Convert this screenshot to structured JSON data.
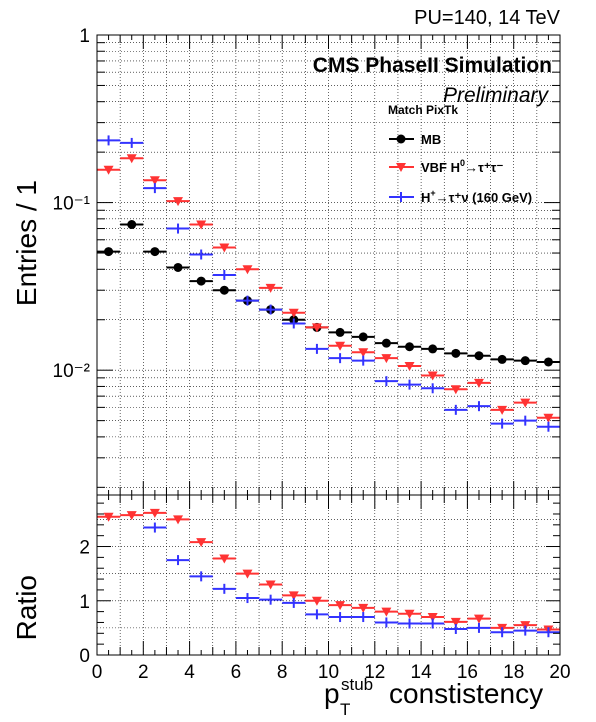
{
  "header": {
    "energy_label": "PU=140, 14 TeV",
    "experiment_label": "CMS PhaseII Simulation",
    "status_label": "Preliminary"
  },
  "legend": {
    "title": "Match PixTk",
    "entries": [
      {
        "key": "mb",
        "label": "MB",
        "sup": "",
        "tail": ""
      },
      {
        "key": "vbf",
        "label": "VBF H",
        "sup": "0",
        "tail": "→τ⁺τ⁻"
      },
      {
        "key": "hplus",
        "label": "H",
        "sup": "+",
        "tail": "→τ⁺ν  (160 GeV)"
      }
    ]
  },
  "chart_data": [
    {
      "type": "scatter",
      "panel": "main",
      "title": "",
      "xlabel": "",
      "ylabel": "Entries / 1",
      "yscale": "log",
      "ylim": [
        0.0018,
        1.0
      ],
      "xlim": [
        0,
        20
      ],
      "y_tick_labels": [
        "1",
        "10⁻¹",
        "10⁻²"
      ],
      "x": [
        0.5,
        1.5,
        2.5,
        3.5,
        4.5,
        5.5,
        6.5,
        7.5,
        8.5,
        9.5,
        10.5,
        11.5,
        12.5,
        13.5,
        14.5,
        15.5,
        16.5,
        17.5,
        18.5,
        19.5
      ],
      "series": [
        {
          "name": "MB",
          "color": "#000000",
          "marker": "circle",
          "values": [
            0.051,
            0.074,
            0.051,
            0.041,
            0.034,
            0.03,
            0.026,
            0.023,
            0.02,
            0.018,
            0.0168,
            0.0158,
            0.0145,
            0.0138,
            0.0134,
            0.0126,
            0.0122,
            0.0116,
            0.0114,
            0.0112
          ]
        },
        {
          "name": "VBF H0→τ+τ-",
          "color": "#ff3333",
          "marker": "triangle-down",
          "values": [
            0.157,
            0.184,
            0.136,
            0.102,
            0.074,
            0.054,
            0.04,
            0.031,
            0.022,
            0.018,
            0.014,
            0.0128,
            0.0118,
            0.0106,
            0.0093,
            0.0077,
            0.0084,
            0.0058,
            0.0064,
            0.0052
          ]
        },
        {
          "name": "H+→τ+ν (160 GeV)",
          "color": "#3333ff",
          "marker": "plus",
          "values": [
            0.235,
            0.227,
            0.122,
            0.07,
            0.049,
            0.037,
            0.026,
            0.023,
            0.019,
            0.0134,
            0.0118,
            0.0114,
            0.0086,
            0.0082,
            0.0078,
            0.0058,
            0.0061,
            0.0048,
            0.005,
            0.0046
          ]
        }
      ]
    },
    {
      "type": "scatter",
      "panel": "ratio",
      "title": "",
      "xlabel": "p_T^stub constistency",
      "ylabel": "Ratio",
      "ylim": [
        0,
        2.95
      ],
      "xlim": [
        0,
        20
      ],
      "y_tick_labels": [
        "0",
        "1",
        "2"
      ],
      "x_tick_labels": [
        "0",
        "2",
        "4",
        "6",
        "8",
        "10",
        "12",
        "14",
        "16",
        "18",
        "20"
      ],
      "x": [
        0.5,
        1.5,
        2.5,
        3.5,
        4.5,
        5.5,
        6.5,
        7.5,
        8.5,
        9.5,
        10.5,
        11.5,
        12.5,
        13.5,
        14.5,
        15.5,
        16.5,
        17.5,
        18.5,
        19.5
      ],
      "series": [
        {
          "name": "VBF / MB",
          "color": "#ff3333",
          "marker": "triangle-down",
          "values": [
            2.55,
            2.58,
            2.62,
            2.5,
            2.08,
            1.78,
            1.5,
            1.3,
            1.1,
            1.0,
            0.92,
            0.87,
            0.8,
            0.76,
            0.7,
            0.61,
            0.67,
            0.5,
            0.55,
            0.47
          ]
        },
        {
          "name": "H+ / MB",
          "color": "#3333ff",
          "marker": "plus",
          "values": [
            null,
            null,
            2.35,
            1.75,
            1.45,
            1.22,
            1.05,
            1.02,
            0.96,
            0.75,
            0.7,
            0.7,
            0.6,
            0.58,
            0.58,
            0.48,
            0.5,
            0.42,
            0.45,
            0.42
          ]
        }
      ]
    }
  ]
}
